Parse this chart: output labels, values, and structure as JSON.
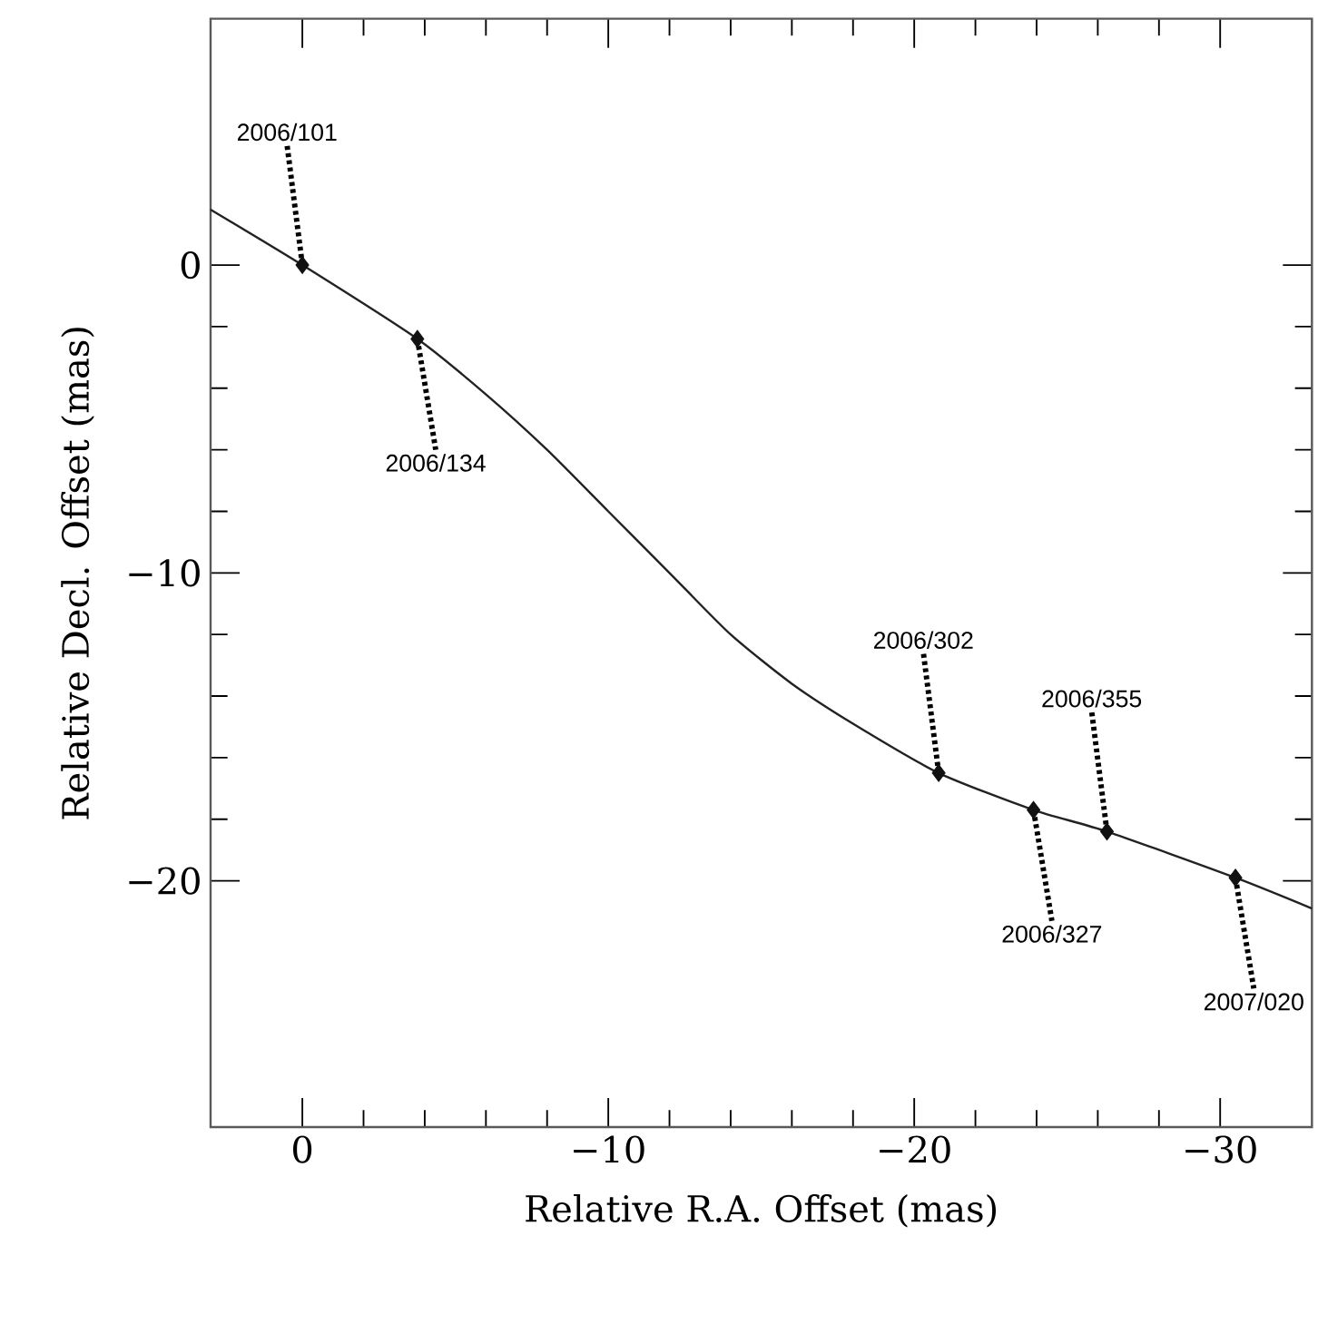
{
  "chart_data": {
    "type": "line",
    "xlabel": "Relative R.A. Offset (mas)",
    "ylabel": "Relative Decl. Offset (mas)",
    "xlim": [
      3,
      -33
    ],
    "ylim": [
      -28,
      8
    ],
    "xticks": [
      {
        "value": 0,
        "label": "0"
      },
      {
        "value": -10,
        "label": "−10"
      },
      {
        "value": -20,
        "label": "−20"
      },
      {
        "value": -30,
        "label": "−30"
      }
    ],
    "yticks": [
      {
        "value": -20,
        "label": "−20"
      },
      {
        "value": -10,
        "label": "−10"
      },
      {
        "value": 0,
        "label": "0"
      }
    ],
    "series": [
      {
        "color": "#222222",
        "marker": "none",
        "x": [
          3,
          0,
          -3.76,
          -6,
          -8,
          -10,
          -12,
          -14,
          -16,
          -18,
          -20.8,
          -23.9,
          -26.3,
          -30.5,
          -33
        ],
        "values": [
          1.8,
          0,
          -2.4,
          -4.2,
          -6.0,
          -8.0,
          -10.0,
          -12.0,
          -13.6,
          -14.9,
          -16.5,
          -17.7,
          -18.4,
          -19.9,
          -20.9
        ]
      },
      {
        "type": "scatter",
        "color": "#111111",
        "marker": "diamond",
        "x": [
          0,
          -3.76,
          -20.8,
          -23.9,
          -26.3,
          -30.5
        ],
        "values": [
          0,
          -2.4,
          -16.5,
          -17.7,
          -18.4,
          -19.9
        ]
      }
    ],
    "annotations": [
      {
        "text": "2006/101",
        "x": 0,
        "y": 0
      },
      {
        "text": "2006/134",
        "x": -3.76,
        "y": -2.4
      },
      {
        "text": "2006/302",
        "x": -20.8,
        "y": -16.5
      },
      {
        "text": "2006/327",
        "x": -23.9,
        "y": -17.7
      },
      {
        "text": "2006/355",
        "x": -26.3,
        "y": -18.4
      },
      {
        "text": "2007/020",
        "x": -30.5,
        "y": -19.9
      }
    ]
  }
}
